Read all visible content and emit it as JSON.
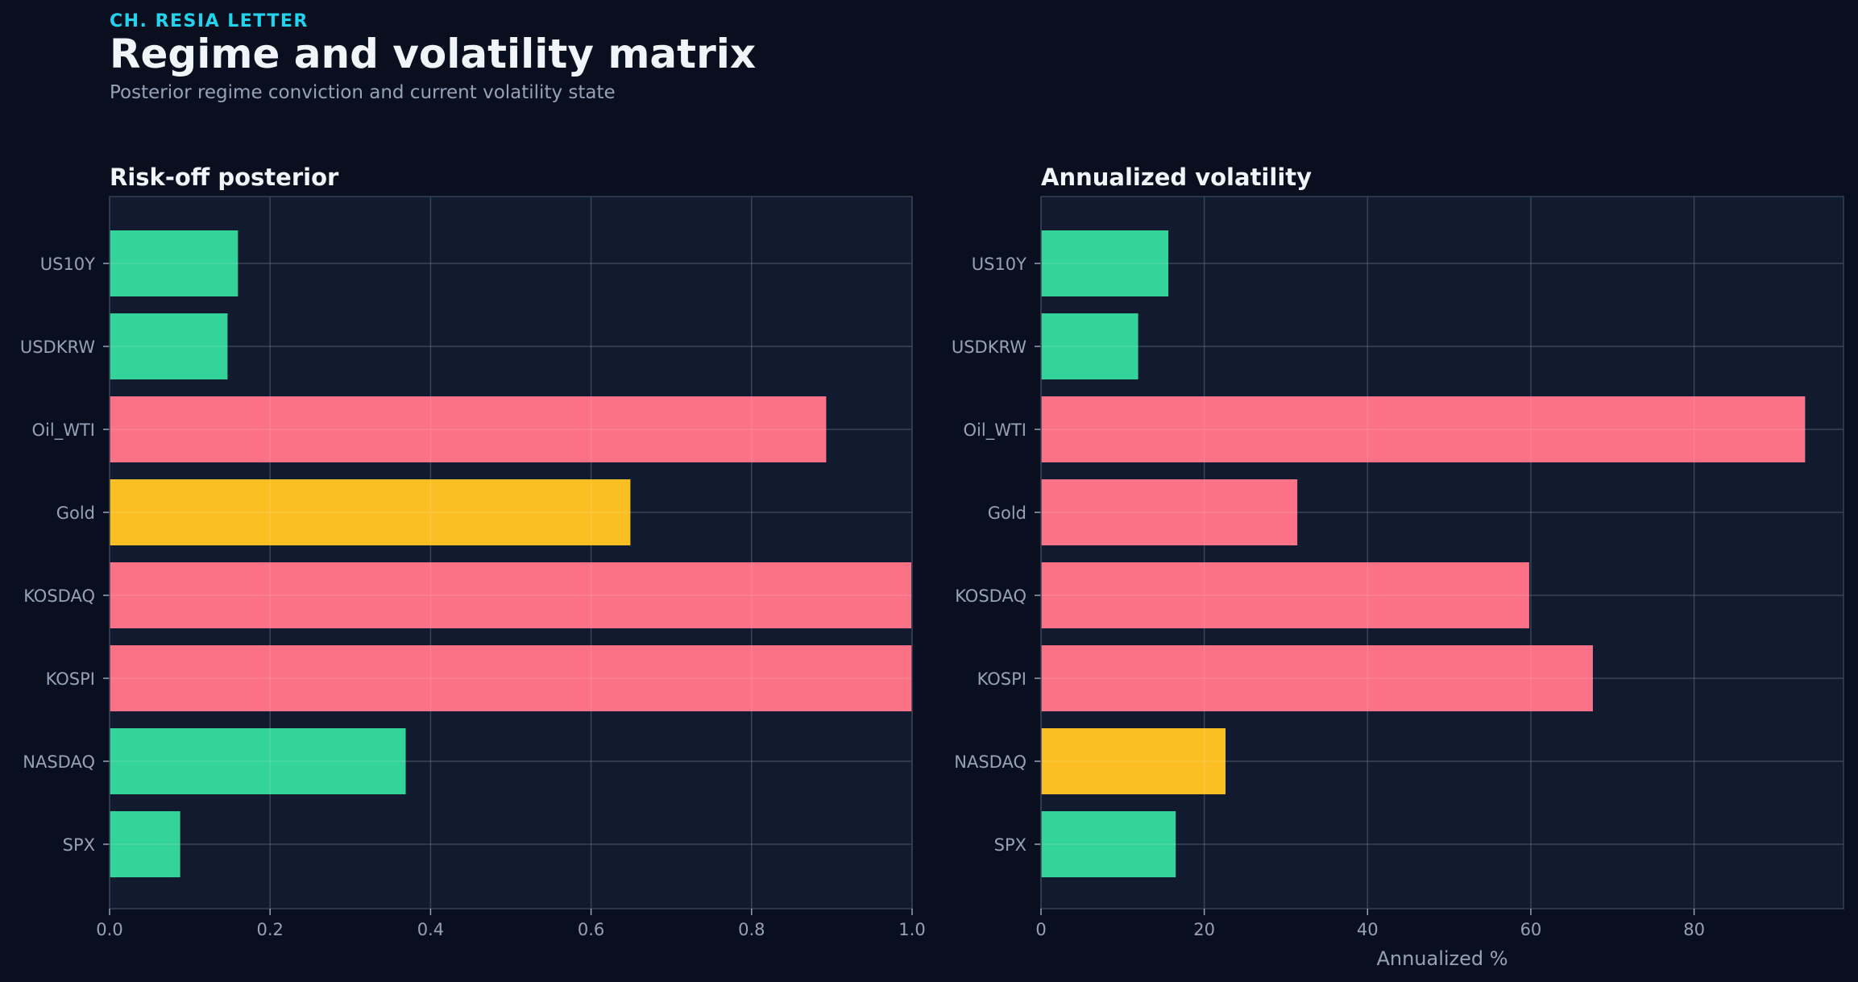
{
  "header": {
    "kicker": "CH. RESIA LETTER",
    "title": "Regime and volatility matrix",
    "subtitle": "Posterior regime conviction and current volatility state"
  },
  "colors": {
    "background": "#0a0f1f",
    "panel": "#111a2e",
    "green": "#34d399",
    "red": "#fb7185",
    "yellow": "#fbbf24",
    "text": "#f1f5f9",
    "muted": "#94a3b8",
    "grid": "#1f2a40",
    "frame": "#334155"
  },
  "chart_data": [
    {
      "type": "bar",
      "orientation": "horizontal",
      "title": "Risk-off posterior",
      "xlabel": "",
      "ylabel": "",
      "categories": [
        "US10Y",
        "USDKRW",
        "Oil_WTI",
        "Gold",
        "KOSDAQ",
        "KOSPI",
        "NASDAQ",
        "SPX"
      ],
      "values": [
        0.16,
        0.147,
        0.893,
        0.649,
        0.999,
        1.0,
        0.369,
        0.088
      ],
      "bar_colors": [
        "green",
        "green",
        "red",
        "yellow",
        "red",
        "red",
        "green",
        "green"
      ],
      "xlim": [
        0,
        1.0
      ],
      "xticks": [
        0.0,
        0.2,
        0.4,
        0.6,
        0.8,
        1.0
      ],
      "xtick_labels": [
        "0.0",
        "0.2",
        "0.4",
        "0.6",
        "0.8",
        "1.0"
      ],
      "grid": true
    },
    {
      "type": "bar",
      "orientation": "horizontal",
      "title": "Annualized volatility",
      "xlabel": "Annualized %",
      "ylabel": "",
      "categories": [
        "US10Y",
        "USDKRW",
        "Oil_WTI",
        "Gold",
        "KOSDAQ",
        "KOSPI",
        "NASDAQ",
        "SPX"
      ],
      "values": [
        15.6,
        11.9,
        93.6,
        31.4,
        59.8,
        67.6,
        22.6,
        16.5
      ],
      "bar_colors": [
        "green",
        "green",
        "red",
        "red",
        "red",
        "red",
        "yellow",
        "green"
      ],
      "xlim": [
        0,
        98.3
      ],
      "xticks": [
        0,
        20,
        40,
        60,
        80
      ],
      "xtick_labels": [
        "0",
        "20",
        "40",
        "60",
        "80"
      ],
      "grid": true
    }
  ]
}
